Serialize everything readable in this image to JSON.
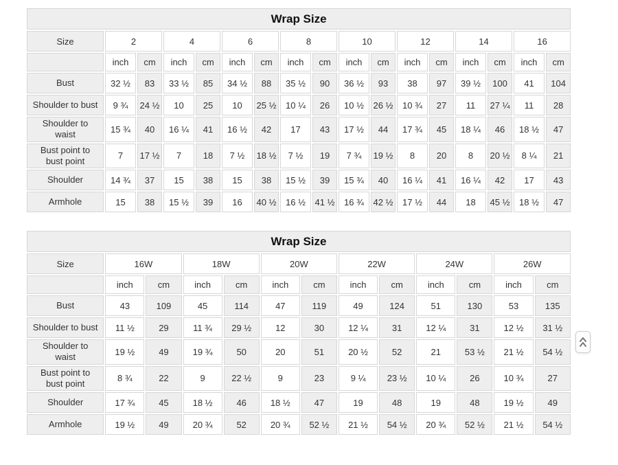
{
  "colors": {
    "cell_gray": "#eeeeee",
    "cell_white": "#ffffff",
    "border": "#d6d6d6",
    "text": "#333333"
  },
  "scroll_top_button": {
    "icon": "chevrons-up"
  },
  "tables": [
    {
      "title": "Wrap Size",
      "corner_label": "Size",
      "sizes": [
        "2",
        "4",
        "6",
        "8",
        "10",
        "12",
        "14",
        "16"
      ],
      "unit_labels": [
        "inch",
        "cm"
      ],
      "rows": [
        {
          "label": "Bust",
          "values": [
            "32 ½",
            "83",
            "33 ½",
            "85",
            "34 ½",
            "88",
            "35 ½",
            "90",
            "36 ½",
            "93",
            "38",
            "97",
            "39 ½",
            "100",
            "41",
            "104"
          ]
        },
        {
          "label": "Shoulder to bust",
          "values": [
            "9 ¾",
            "24 ½",
            "10",
            "25",
            "10",
            "25 ½",
            "10 ¼",
            "26",
            "10 ½",
            "26 ½",
            "10 ¾",
            "27",
            "11",
            "27 ¼",
            "11",
            "28"
          ]
        },
        {
          "label": "Shoulder to\nwaist",
          "values": [
            "15 ¾",
            "40",
            "16 ¼",
            "41",
            "16 ½",
            "42",
            "17",
            "43",
            "17 ½",
            "44",
            "17 ¾",
            "45",
            "18 ¼",
            "46",
            "18 ½",
            "47"
          ]
        },
        {
          "label": "Bust point to\nbust point",
          "values": [
            "7",
            "17 ½",
            "7",
            "18",
            "7 ½",
            "18 ½",
            "7 ½",
            "19",
            "7 ¾",
            "19 ½",
            "8",
            "20",
            "8",
            "20 ½",
            "8 ¼",
            "21"
          ]
        },
        {
          "label": "Shoulder",
          "values": [
            "14 ¾",
            "37",
            "15",
            "38",
            "15",
            "38",
            "15 ½",
            "39",
            "15 ¾",
            "40",
            "16 ¼",
            "41",
            "16 ¼",
            "42",
            "17",
            "43"
          ]
        },
        {
          "label": "Armhole",
          "values": [
            "15",
            "38",
            "15 ½",
            "39",
            "16",
            "40 ½",
            "16 ½",
            "41 ½",
            "16 ¾",
            "42 ½",
            "17 ½",
            "44",
            "18",
            "45 ½",
            "18 ½",
            "47"
          ]
        }
      ]
    },
    {
      "title": "Wrap Size",
      "corner_label": "Size",
      "sizes": [
        "16W",
        "18W",
        "20W",
        "22W",
        "24W",
        "26W"
      ],
      "unit_labels": [
        "inch",
        "cm"
      ],
      "rows": [
        {
          "label": "Bust",
          "values": [
            "43",
            "109",
            "45",
            "114",
            "47",
            "119",
            "49",
            "124",
            "51",
            "130",
            "53",
            "135"
          ]
        },
        {
          "label": "Shoulder to bust",
          "values": [
            "11 ½",
            "29",
            "11 ¾",
            "29 ½",
            "12",
            "30",
            "12 ¼",
            "31",
            "12 ¼",
            "31",
            "12 ½",
            "31 ½"
          ]
        },
        {
          "label": "Shoulder to\nwaist",
          "values": [
            "19 ½",
            "49",
            "19 ¾",
            "50",
            "20",
            "51",
            "20 ½",
            "52",
            "21",
            "53 ½",
            "21 ½",
            "54 ½"
          ]
        },
        {
          "label": "Bust point to\nbust point",
          "values": [
            "8 ¾",
            "22",
            "9",
            "22 ½",
            "9",
            "23",
            "9 ¼",
            "23 ½",
            "10 ¼",
            "26",
            "10 ¾",
            "27"
          ]
        },
        {
          "label": "Shoulder",
          "values": [
            "17 ¾",
            "45",
            "18 ½",
            "46",
            "18 ½",
            "47",
            "19",
            "48",
            "19",
            "48",
            "19 ½",
            "49"
          ]
        },
        {
          "label": "Armhole",
          "values": [
            "19 ½",
            "49",
            "20 ¾",
            "52",
            "20 ¾",
            "52 ½",
            "21 ½",
            "54 ½",
            "20 ¾",
            "52 ½",
            "21 ½",
            "54 ½"
          ]
        }
      ]
    }
  ]
}
